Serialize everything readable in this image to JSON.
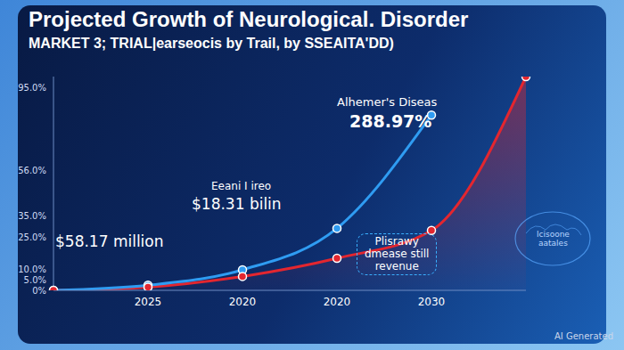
{
  "chart_data": {
    "type": "line",
    "title": "Projected Growth of Neurological. Disorder",
    "subtitle": "MARKET 3; TRIAL|earseocis by Trail, by SSEAITA'DD)",
    "categories": [
      null,
      "2025",
      "2020",
      "2020",
      "2030",
      null
    ],
    "series": [
      {
        "type": "line",
        "color": "#2f9cf2",
        "marker": "circle",
        "values": [
          0,
          2.4,
          9.6,
          29,
          82,
          null
        ]
      },
      {
        "type": "area",
        "color": "#e3262f",
        "marker": "circle",
        "values": [
          0,
          1.5,
          6.5,
          15,
          28,
          100
        ]
      }
    ],
    "ylim": [
      0,
      100
    ],
    "yticks": [
      {
        "value": 0,
        "label": "0%"
      },
      {
        "value": 5,
        "label": "5.0%"
      },
      {
        "value": 10,
        "label": "10.0%"
      },
      {
        "value": 25,
        "label": "25.0%"
      },
      {
        "value": 35,
        "label": "35.0%"
      },
      {
        "value": 56,
        "label": "56.0%"
      },
      {
        "value": 95,
        "label": "95.0%"
      }
    ],
    "grid": false,
    "annotations": [
      "$58.17 million",
      "Eeani I ireo",
      "$18.31 bilin",
      "Alhemer's Diseas",
      "288.97%",
      "Plisrawy\ndmease still\nrevenue",
      "lcisoone\naatales"
    ],
    "watermark": "AI Generated"
  }
}
